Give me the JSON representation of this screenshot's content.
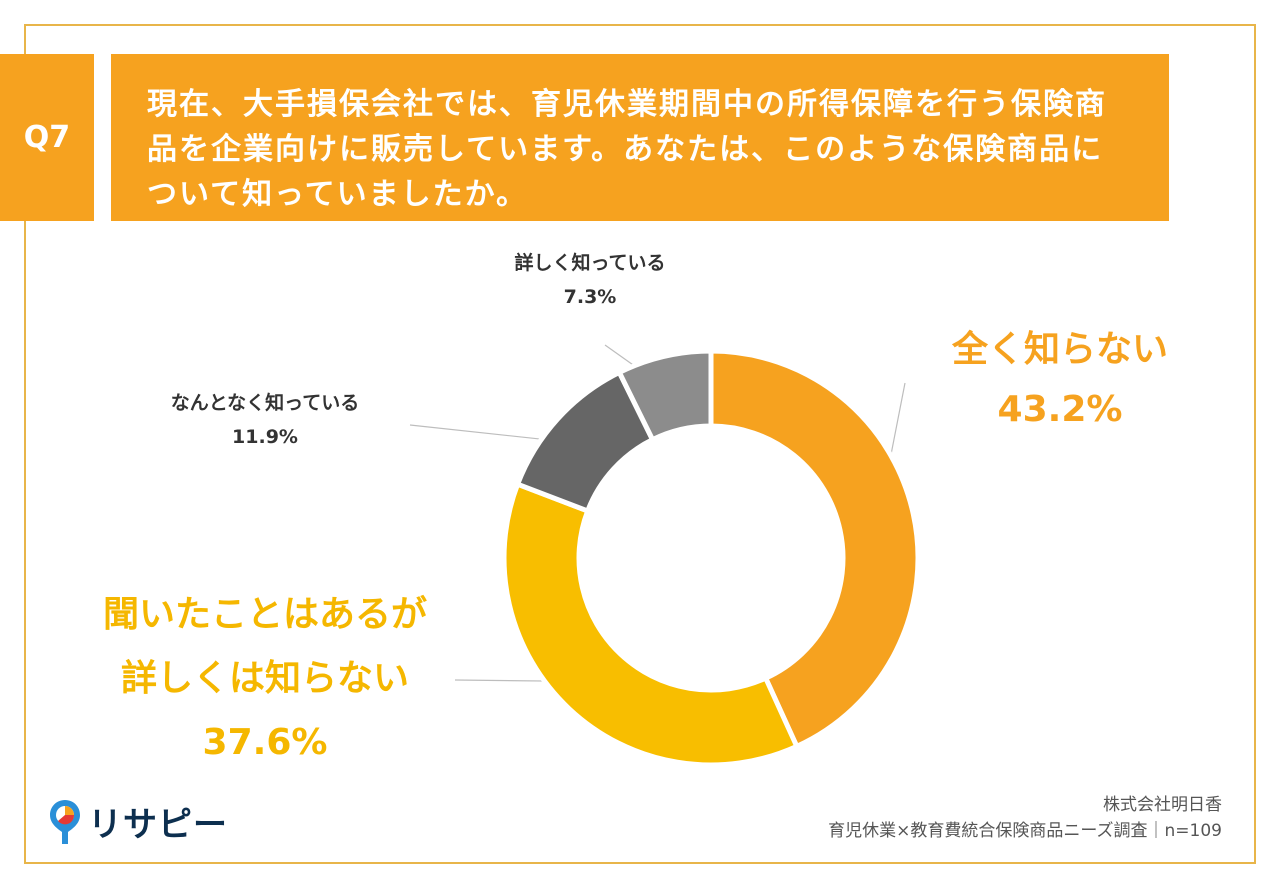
{
  "question": {
    "number": "Q7",
    "lines": [
      "現在、大手損保会社では、育児休業期間中の所得保障を行う保険商",
      "品を企業向けに販売しています。あなたは、このような保険商品に",
      "ついて知っていましたか。"
    ]
  },
  "chart_data": {
    "type": "pie",
    "variant": "donut",
    "title": "",
    "categories": [
      "全く知らない",
      "聞いたことはあるが詳しくは知らない",
      "なんとなく知っている",
      "詳しく知っている"
    ],
    "values": [
      43.2,
      37.6,
      11.9,
      7.3
    ],
    "unit": "%",
    "colors": [
      "#f6a21f",
      "#f8be00",
      "#666666",
      "#8c8c8c"
    ],
    "labels": [
      {
        "lines": [
          "全く知らない"
        ],
        "value": "43.2%"
      },
      {
        "lines": [
          "聞いたことはあるが",
          "詳しくは知らない"
        ],
        "value": "37.6%"
      },
      {
        "lines": [
          "なんとなく知っている"
        ],
        "value": "11.9%"
      },
      {
        "lines": [
          "詳しく知っている"
        ],
        "value": "7.3%"
      }
    ]
  },
  "footer": {
    "company": "株式会社明日香",
    "survey": "育児休業×教育費統合保険商品ニーズ調査｜n=109"
  },
  "logo": {
    "text": "リサピー"
  }
}
